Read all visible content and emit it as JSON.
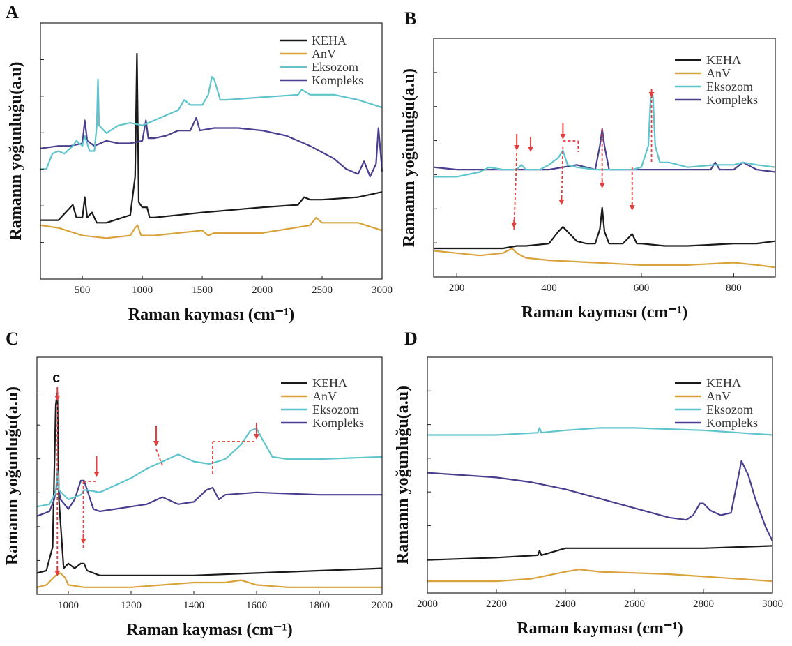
{
  "figure": {
    "colors": {
      "KEHA": "#1a1a1a",
      "AnV": "#d9a23a",
      "Eksozom": "#5fc4cc",
      "Kompleks": "#4a3f8f",
      "arrow": "#e04040"
    }
  },
  "chart_data": [
    {
      "panel": "A",
      "type": "line",
      "xlabel": "Raman kayması (cm⁻¹)",
      "ylabel": "Ramanın yoğunluğu(a.u)",
      "xlim": [
        150,
        3000
      ],
      "ylim": [
        0,
        100
      ],
      "xticks": [
        500,
        1000,
        1500,
        2000,
        2500,
        3000
      ],
      "legend_position": "top-right",
      "series": [
        {
          "name": "KEHA",
          "x": [
            150,
            300,
            420,
            450,
            500,
            520,
            540,
            580,
            620,
            700,
            900,
            940,
            955,
            970,
            1000,
            1040,
            1060,
            1100,
            1500,
            2000,
            2300,
            2350,
            2400,
            2500,
            2800,
            3000
          ],
          "y": [
            23,
            23,
            29,
            24,
            24,
            32,
            24,
            26,
            22,
            22,
            25,
            40,
            88,
            30,
            28,
            28,
            24,
            24,
            26,
            28,
            29,
            32,
            31,
            31,
            32,
            34
          ]
        },
        {
          "name": "AnV",
          "x": [
            150,
            300,
            500,
            700,
            900,
            940,
            960,
            990,
            1100,
            1500,
            1550,
            1600,
            2000,
            2400,
            2450,
            2500,
            2800,
            3000
          ],
          "y": [
            21,
            20,
            17,
            16,
            17,
            20,
            21,
            17,
            17,
            19,
            17,
            18,
            18,
            21,
            24,
            22,
            22,
            19
          ]
        },
        {
          "name": "Eksozom",
          "x": [
            150,
            200,
            250,
            300,
            350,
            420,
            450,
            500,
            520,
            560,
            600,
            620,
            630,
            640,
            700,
            800,
            900,
            1000,
            1100,
            1200,
            1300,
            1350,
            1400,
            1500,
            1550,
            1580,
            1600,
            1650,
            1700,
            2000,
            2300,
            2330,
            2400,
            2600,
            2800,
            3000
          ],
          "y": [
            43,
            43,
            49,
            50,
            49,
            52,
            54,
            52,
            56,
            50,
            50,
            60,
            78,
            60,
            57,
            60,
            61,
            60,
            62,
            64,
            66,
            70,
            68,
            68,
            72,
            79,
            78,
            70,
            70,
            71,
            72,
            74,
            72,
            72,
            70,
            67
          ]
        },
        {
          "name": "Kompleks",
          "x": [
            150,
            300,
            400,
            500,
            520,
            540,
            600,
            700,
            800,
            900,
            1000,
            1030,
            1050,
            1100,
            1200,
            1300,
            1400,
            1450,
            1480,
            1600,
            1800,
            2000,
            2200,
            2400,
            2600,
            2700,
            2800,
            2850,
            2900,
            2950,
            2970,
            2990,
            3000
          ],
          "y": [
            51,
            52,
            52,
            53,
            62,
            54,
            52,
            54,
            53,
            53,
            54,
            62,
            55,
            55,
            56,
            58,
            58,
            63,
            58,
            59,
            59,
            58,
            56,
            52,
            47,
            43,
            41,
            46,
            40,
            45,
            59,
            48,
            42
          ]
        }
      ]
    },
    {
      "panel": "B",
      "type": "line",
      "xlabel": "Raman kayması (cm⁻¹)",
      "ylabel": "Ramanın yoğunluğu(a.u)",
      "xlim": [
        150,
        890
      ],
      "ylim": [
        0,
        100
      ],
      "xticks": [
        200,
        400,
        600,
        800
      ],
      "legend_position": "top-right",
      "series": [
        {
          "name": "KEHA",
          "x": [
            150,
            250,
            300,
            330,
            350,
            400,
            420,
            430,
            440,
            460,
            480,
            500,
            510,
            515,
            520,
            530,
            560,
            575,
            580,
            590,
            600,
            650,
            700,
            800,
            850,
            890
          ],
          "y": [
            12,
            12,
            12,
            13,
            13,
            14,
            19,
            21,
            19,
            15,
            14,
            14,
            20,
            29,
            19,
            14,
            14,
            17,
            18,
            14,
            14,
            13,
            13,
            14,
            14,
            15
          ]
        },
        {
          "name": "AnV",
          "x": [
            150,
            200,
            250,
            300,
            320,
            330,
            350,
            400,
            500,
            600,
            700,
            800,
            850,
            890
          ],
          "y": [
            11,
            10,
            9,
            10,
            12,
            10,
            8,
            7,
            6,
            5,
            5,
            6,
            5,
            4
          ]
        },
        {
          "name": "Eksozom",
          "x": [
            150,
            200,
            250,
            270,
            300,
            330,
            340,
            350,
            380,
            400,
            420,
            430,
            440,
            460,
            500,
            550,
            580,
            600,
            615,
            620,
            625,
            630,
            640,
            660,
            700,
            760,
            800,
            820,
            850,
            890
          ],
          "y": [
            42,
            42,
            44,
            46,
            45,
            45,
            47,
            45,
            45,
            47,
            50,
            53,
            47,
            46,
            45,
            45,
            45,
            46,
            55,
            75,
            76,
            55,
            48,
            48,
            46,
            47,
            47,
            48,
            47,
            46
          ]
        },
        {
          "name": "Kompleks",
          "x": [
            150,
            200,
            300,
            400,
            460,
            500,
            510,
            515,
            520,
            530,
            560,
            600,
            700,
            750,
            760,
            770,
            800,
            820,
            850,
            890
          ],
          "y": [
            46,
            45,
            45,
            45,
            47,
            45,
            55,
            62,
            55,
            45,
            45,
            45,
            45,
            45,
            48,
            45,
            45,
            48,
            45,
            44
          ]
        }
      ],
      "annotations": [
        {
          "type": "arrow",
          "label": ""
        }
      ]
    },
    {
      "panel": "C",
      "type": "line",
      "xlabel": "Raman kayması (cm⁻¹)",
      "ylabel": "Ramanın yoğunluğu(a.u)",
      "xlim": [
        900,
        2000
      ],
      "ylim": [
        0,
        100
      ],
      "xticks": [
        1000,
        1200,
        1400,
        1600,
        1800,
        2000
      ],
      "legend_position": "top-right",
      "annotation_text": "c",
      "series": [
        {
          "name": "KEHA",
          "x": [
            900,
            930,
            950,
            960,
            965,
            970,
            985,
            1000,
            1020,
            1040,
            1050,
            1060,
            1080,
            1100,
            1200,
            1400,
            1600,
            1800,
            2000
          ],
          "y": [
            9,
            10,
            20,
            80,
            85,
            40,
            11,
            13,
            11,
            13,
            13,
            10,
            9,
            8,
            8,
            8,
            9,
            10,
            11
          ]
        },
        {
          "name": "AnV",
          "x": [
            900,
            930,
            960,
            975,
            990,
            1000,
            1050,
            1100,
            1200,
            1400,
            1500,
            1550,
            1600,
            1700,
            1800,
            2000
          ],
          "y": [
            3,
            4,
            8,
            9,
            7,
            4,
            3,
            3,
            3,
            5,
            5,
            6,
            4,
            3,
            3,
            3
          ]
        },
        {
          "name": "Eksozom",
          "x": [
            900,
            940,
            960,
            965,
            970,
            1000,
            1040,
            1050,
            1060,
            1100,
            1150,
            1200,
            1250,
            1300,
            1350,
            1400,
            1450,
            1500,
            1550,
            1580,
            1600,
            1620,
            1650,
            1700,
            1800,
            2000
          ],
          "y": [
            37,
            38,
            43,
            52,
            44,
            40,
            42,
            44,
            44,
            43,
            46,
            49,
            53,
            56,
            59,
            56,
            55,
            57,
            63,
            69,
            70,
            65,
            58,
            57,
            57,
            58
          ]
        },
        {
          "name": "Kompleks",
          "x": [
            900,
            940,
            955,
            965,
            975,
            1000,
            1020,
            1040,
            1050,
            1060,
            1080,
            1100,
            1150,
            1200,
            1250,
            1300,
            1350,
            1400,
            1440,
            1460,
            1480,
            1500,
            1600,
            1800,
            2000
          ],
          "y": [
            33,
            35,
            40,
            48,
            40,
            36,
            40,
            48,
            48,
            44,
            36,
            35,
            36,
            37,
            38,
            41,
            38,
            39,
            44,
            45,
            40,
            42,
            43,
            42,
            42
          ]
        }
      ]
    },
    {
      "panel": "D",
      "type": "line",
      "xlabel": "Raman kayması (cm⁻¹)",
      "ylabel": "Ramanın yoğunluğu(a.u)",
      "xlim": [
        2000,
        3000
      ],
      "ylim": [
        0,
        100
      ],
      "xticks": [
        2000,
        2200,
        2400,
        2600,
        2800,
        3000
      ],
      "legend_position": "top-right",
      "series": [
        {
          "name": "KEHA",
          "x": [
            2000,
            2200,
            2320,
            2325,
            2330,
            2400,
            2500,
            2600,
            2800,
            3000
          ],
          "y": [
            14,
            15,
            16,
            18,
            16,
            19,
            19,
            19,
            19,
            20
          ]
        },
        {
          "name": "AnV",
          "x": [
            2000,
            2200,
            2300,
            2400,
            2440,
            2500,
            2700,
            2900,
            3000
          ],
          "y": [
            5,
            5,
            6,
            9,
            10,
            9,
            8,
            6,
            5
          ]
        },
        {
          "name": "Eksozom",
          "x": [
            2000,
            2200,
            2320,
            2325,
            2330,
            2400,
            2500,
            2600,
            2800,
            2900,
            3000
          ],
          "y": [
            67,
            67,
            68,
            70,
            68,
            69,
            70,
            70,
            69,
            68,
            67
          ]
        },
        {
          "name": "Kompleks",
          "x": [
            2000,
            2100,
            2200,
            2300,
            2400,
            2500,
            2600,
            2700,
            2750,
            2770,
            2790,
            2800,
            2820,
            2850,
            2880,
            2910,
            2930,
            2950,
            2980,
            3000
          ],
          "y": [
            51,
            50,
            49,
            47,
            44,
            40,
            36,
            32,
            31,
            33,
            38,
            38,
            35,
            33,
            34,
            56,
            50,
            40,
            28,
            22
          ]
        }
      ]
    }
  ]
}
